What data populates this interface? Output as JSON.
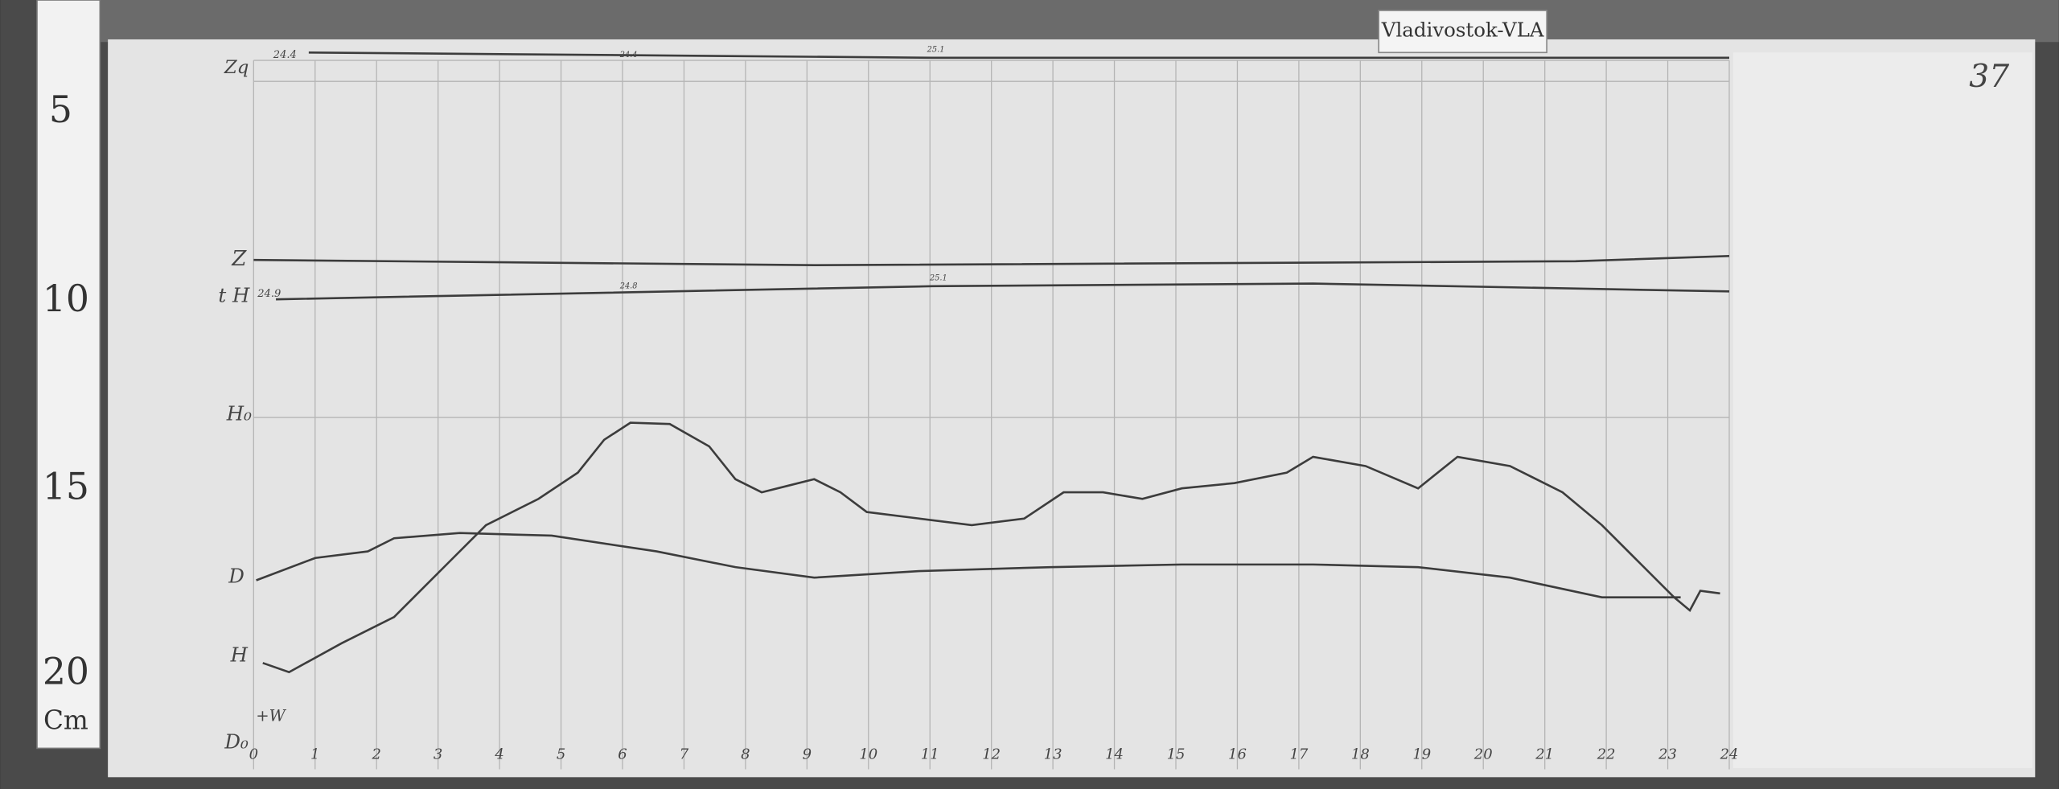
{
  "label": "Vladivostok-VLA",
  "page_number": "37",
  "ruler": {
    "marks": [
      "5",
      "10",
      "15",
      "20"
    ],
    "unit": "Cm"
  },
  "trace_labels": {
    "zq": "Zq",
    "z": "Z",
    "th": "t H",
    "h0": "H₀",
    "d": "D",
    "h": "H",
    "d0": "D₀",
    "w": "+W"
  },
  "temperatures": {
    "top_start": "24.4",
    "top_mid": "24.4",
    "top_end": "25.1",
    "start": "24.9",
    "mid": "24.8",
    "end": "25.1"
  },
  "hours": [
    "0",
    "1",
    "2",
    "3",
    "4",
    "5",
    "6",
    "7",
    "8",
    "9",
    "10",
    "11",
    "12",
    "13",
    "14",
    "15",
    "16",
    "17",
    "18",
    "19",
    "20",
    "21",
    "22",
    "23",
    "24"
  ]
}
